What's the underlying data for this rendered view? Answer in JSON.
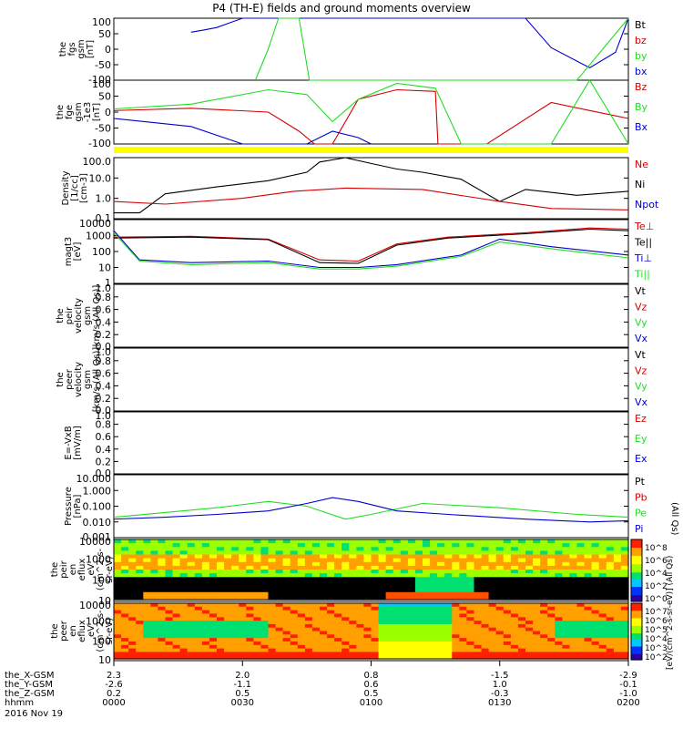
{
  "title": "P4 (TH-E) fields and ground moments overview",
  "colors": {
    "black": "#000000",
    "red": "#d40000",
    "green": "#22dd22",
    "blue": "#0000cc",
    "yellow": "#ffff00"
  },
  "panels": [
    {
      "ylabel": [
        "the",
        "fgs",
        "gsm",
        "[nT]"
      ],
      "ticks": [
        "100",
        "50",
        "0",
        "-50",
        "-100"
      ],
      "legend": [
        {
          "text": "Bt",
          "color": "#000000"
        },
        {
          "text": "bz",
          "color": "#d40000"
        },
        {
          "text": "by",
          "color": "#22dd22"
        },
        {
          "text": "bx",
          "color": "#0000cc"
        }
      ]
    },
    {
      "ylabel": [
        "the",
        "fge",
        "gsm",
        "-1e3",
        "[nT]"
      ],
      "ticks": [
        "100",
        "50",
        "0",
        "-50",
        "-100"
      ],
      "legend": [
        {
          "text": "Bz",
          "color": "#d40000"
        },
        {
          "text": "By",
          "color": "#22dd22"
        },
        {
          "text": "Bx",
          "color": "#0000cc"
        }
      ]
    },
    {
      "ylabel": [
        "Density",
        "[1/cc]",
        "[cm-3]"
      ],
      "ticks": [
        "100.0",
        "10.0",
        "1.0",
        "0.1"
      ],
      "legend": [
        {
          "text": "Ne",
          "color": "#d40000"
        },
        {
          "text": "Ni",
          "color": "#000000"
        },
        {
          "text": "Npot",
          "color": "#0000cc"
        }
      ]
    },
    {
      "ylabel": [
        "magt3",
        "[eV]"
      ],
      "ticks": [
        "10000",
        "1000",
        "100",
        "10",
        "1"
      ],
      "legend": [
        {
          "text": "Te⊥",
          "color": "#d40000"
        },
        {
          "text": "Te||",
          "color": "#000000"
        },
        {
          "text": "Ti⊥",
          "color": "#0000cc"
        },
        {
          "text": "Ti||",
          "color": "#22dd22"
        }
      ]
    },
    {
      "ylabel": [
        "the",
        "peir",
        "velocity",
        "gsm",
        "km/s (All Qs)]"
      ],
      "ticks": [
        "1.0",
        "0.8",
        "0.6",
        "0.4",
        "0.2",
        "0.0"
      ],
      "legend": [
        {
          "text": "Vt",
          "color": "#000000"
        },
        {
          "text": "Vz",
          "color": "#d40000"
        },
        {
          "text": "Vy",
          "color": "#22dd22"
        },
        {
          "text": "Vx",
          "color": "#0000cc"
        }
      ]
    },
    {
      "ylabel": [
        "the",
        "peer",
        "velocity",
        "gsm",
        "[km/s (All Qs)]"
      ],
      "ticks": [
        "1.0",
        "0.8",
        "0.6",
        "0.4",
        "0.2",
        "0.0"
      ],
      "legend": [
        {
          "text": "Vt",
          "color": "#000000"
        },
        {
          "text": "Vz",
          "color": "#d40000"
        },
        {
          "text": "Vy",
          "color": "#22dd22"
        },
        {
          "text": "Vx",
          "color": "#0000cc"
        }
      ]
    },
    {
      "ylabel": [
        "E=-VxB",
        "[mV/m]"
      ],
      "ticks": [
        "1.0",
        "0.8",
        "0.6",
        "0.4",
        "0.2",
        "0.0"
      ],
      "legend": [
        {
          "text": "Ez",
          "color": "#d40000"
        },
        {
          "text": "Ey",
          "color": "#22dd22"
        },
        {
          "text": "Ex",
          "color": "#0000cc"
        }
      ]
    },
    {
      "ylabel": [
        "Pressure",
        "[nPa]"
      ],
      "ticks": [
        "10.000",
        "1.000",
        "0.100",
        "0.010",
        "0.001"
      ],
      "legend": [
        {
          "text": "Pt",
          "color": "#000000"
        },
        {
          "text": "Pb",
          "color": "#d40000"
        },
        {
          "text": "Pe",
          "color": "#22dd22"
        },
        {
          "text": "Pi",
          "color": "#0000cc"
        }
      ],
      "right_note": "(All Qs)"
    },
    {
      "ylabel": [
        "the",
        "peir",
        "en",
        "eflux",
        "eV",
        "(cm^2-s-",
        "sr-eV)"
      ],
      "ticks": [
        "10000",
        "1000",
        "100",
        "10"
      ]
    },
    {
      "ylabel": [
        "the",
        "peer",
        "en",
        "eflux",
        "eV",
        "(cm^2-s-",
        "sr-eV)"
      ],
      "ticks": [
        "10000",
        "1000",
        "100",
        "10"
      ]
    }
  ],
  "colorbar": {
    "top_ticks": [
      "10^8",
      "10^6",
      "10^4",
      "10^2",
      "10^0"
    ],
    "bottom_ticks": [
      "10^7",
      "10^6",
      "10^5",
      "10^4",
      "10^3",
      "10^2"
    ],
    "label": "[eV/(cm^2-s-sr-eV)] (All Qs)"
  },
  "footer": {
    "rows": [
      {
        "label": "the_X-GSM",
        "values": [
          "2.3",
          "2.0",
          "0.8",
          "-1.5",
          "-2.9"
        ]
      },
      {
        "label": "the_Y-GSM",
        "values": [
          "-2.6",
          "-1.1",
          "0.6",
          "1.0",
          "-0.1"
        ]
      },
      {
        "label": "the_Z-GSM",
        "values": [
          "0.2",
          "0.5",
          "0.5",
          "-0.3",
          "-1.0"
        ]
      },
      {
        "label": "hhmm",
        "values": [
          "0000",
          "0030",
          "0100",
          "0130",
          "0200"
        ]
      }
    ],
    "date": "2016 Nov 19"
  },
  "chart_data": {
    "type": "line",
    "title": "P4 (TH-E) fields and ground moments overview",
    "x": [
      "0000",
      "0030",
      "0100",
      "0130",
      "0200"
    ],
    "xlabel": "hhmm",
    "date": "2016 Nov 19",
    "panels": [
      {
        "name": "fgs",
        "ylim": [
          -100,
          100
        ],
        "series": [
          {
            "name": "bx",
            "x": [
              0.3,
              0.35,
              0.4,
              0.5,
              1.6,
              1.7,
              1.85,
              1.95,
              2.0
            ],
            "y": [
              55,
              62,
              70,
              100,
              100,
              5,
              -60,
              -10,
              100
            ]
          },
          {
            "name": "by",
            "x": [
              0.55,
              0.6,
              0.64,
              0.72,
              0.76,
              1.8,
              1.9,
              2.0
            ],
            "y": [
              -100,
              0,
              100,
              100,
              -100,
              -100,
              0,
              100
            ]
          }
        ]
      },
      {
        "name": "fge",
        "ylim": [
          -100,
          100
        ],
        "series": [
          {
            "name": "Bz",
            "x": [
              0.0,
              0.3,
              0.6,
              0.72,
              0.78,
              0.85,
              0.95,
              1.1,
              1.25,
              1.26,
              1.45,
              1.7,
              1.85,
              2.0
            ],
            "y": [
              5,
              12,
              0,
              -60,
              -100,
              -100,
              40,
              70,
              65,
              -100,
              -100,
              30,
              5,
              -20
            ]
          },
          {
            "name": "By",
            "x": [
              0.0,
              0.3,
              0.6,
              0.75,
              0.85,
              0.95,
              1.1,
              1.25,
              1.35,
              1.7,
              1.85,
              2.0
            ],
            "y": [
              10,
              25,
              70,
              55,
              -30,
              40,
              90,
              75,
              -100,
              -100,
              100,
              -100
            ]
          },
          {
            "name": "Bx",
            "x": [
              0.0,
              0.3,
              0.5,
              0.75,
              0.85,
              0.95,
              1.0
            ],
            "y": [
              -20,
              -45,
              -100,
              -100,
              -60,
              -80,
              -100
            ]
          }
        ]
      },
      {
        "name": "Density",
        "ylim": [
          0.02,
          300
        ],
        "log": true,
        "series": [
          {
            "name": "Ni",
            "x": [
              0.0,
              0.1,
              0.2,
              0.4,
              0.6,
              0.75,
              0.8,
              0.9,
              1.0,
              1.1,
              1.2,
              1.35,
              1.5,
              1.6,
              1.8,
              2.0
            ],
            "y": [
              0.05,
              0.05,
              1.0,
              3.0,
              8.0,
              30,
              150,
              300,
              120,
              50,
              30,
              10,
              0.3,
              2.0,
              0.8,
              1.5
            ]
          },
          {
            "name": "Ne",
            "x": [
              0.0,
              0.2,
              0.5,
              0.7,
              0.9,
              1.2,
              1.5,
              1.7,
              2.0
            ],
            "y": [
              0.3,
              0.2,
              0.5,
              1.5,
              2.5,
              2.0,
              0.3,
              0.1,
              0.08
            ]
          }
        ]
      },
      {
        "name": "magt3",
        "ylim": [
          1,
          10000
        ],
        "log": true,
        "series": [
          {
            "name": "Te⊥",
            "x": [
              0.0,
              0.3,
              0.6,
              0.8,
              0.95,
              1.1,
              1.3,
              1.6,
              1.85,
              2.0
            ],
            "y": [
              800,
              900,
              600,
              30,
              25,
              300,
              800,
              1500,
              3000,
              2500
            ]
          },
          {
            "name": "Te||",
            "x": [
              0.0,
              0.3,
              0.6,
              0.8,
              0.95,
              1.1,
              1.3,
              1.6,
              1.85,
              2.0
            ],
            "y": [
              700,
              800,
              550,
              20,
              18,
              250,
              700,
              1300,
              2500,
              2000
            ]
          },
          {
            "name": "Ti⊥",
            "x": [
              0.0,
              0.1,
              0.3,
              0.6,
              0.8,
              0.95,
              1.1,
              1.35,
              1.5,
              1.7,
              2.0
            ],
            "y": [
              2000,
              30,
              20,
              25,
              10,
              10,
              15,
              60,
              600,
              200,
              60
            ]
          },
          {
            "name": "Ti||",
            "x": [
              0.0,
              0.1,
              0.3,
              0.6,
              0.8,
              0.95,
              1.1,
              1.35,
              1.5,
              1.7,
              2.0
            ],
            "y": [
              1500,
              25,
              15,
              20,
              8,
              8,
              12,
              50,
              400,
              150,
              40
            ]
          }
        ]
      },
      {
        "name": "peir velocity",
        "ylim": [
          0,
          1
        ],
        "series": []
      },
      {
        "name": "peer velocity",
        "ylim": [
          0,
          1
        ],
        "series": []
      },
      {
        "name": "E=-VxB",
        "ylim": [
          0,
          1
        ],
        "series": []
      },
      {
        "name": "Pressure",
        "ylim": [
          0.001,
          10
        ],
        "log": true,
        "series": [
          {
            "name": "Pe",
            "x": [
              0.0,
              0.2,
              0.4,
              0.6,
              0.75,
              0.9,
              1.0,
              1.2,
              1.5,
              1.8,
              2.0
            ],
            "y": [
              0.02,
              0.04,
              0.08,
              0.2,
              0.1,
              0.015,
              0.03,
              0.15,
              0.08,
              0.03,
              0.02
            ]
          },
          {
            "name": "Pi",
            "x": [
              0.0,
              0.2,
              0.4,
              0.6,
              0.75,
              0.85,
              0.95,
              1.1,
              1.3,
              1.6,
              1.85,
              2.0
            ],
            "y": [
              0.015,
              0.02,
              0.03,
              0.05,
              0.15,
              0.35,
              0.2,
              0.05,
              0.03,
              0.015,
              0.01,
              0.012
            ]
          }
        ]
      }
    ]
  }
}
